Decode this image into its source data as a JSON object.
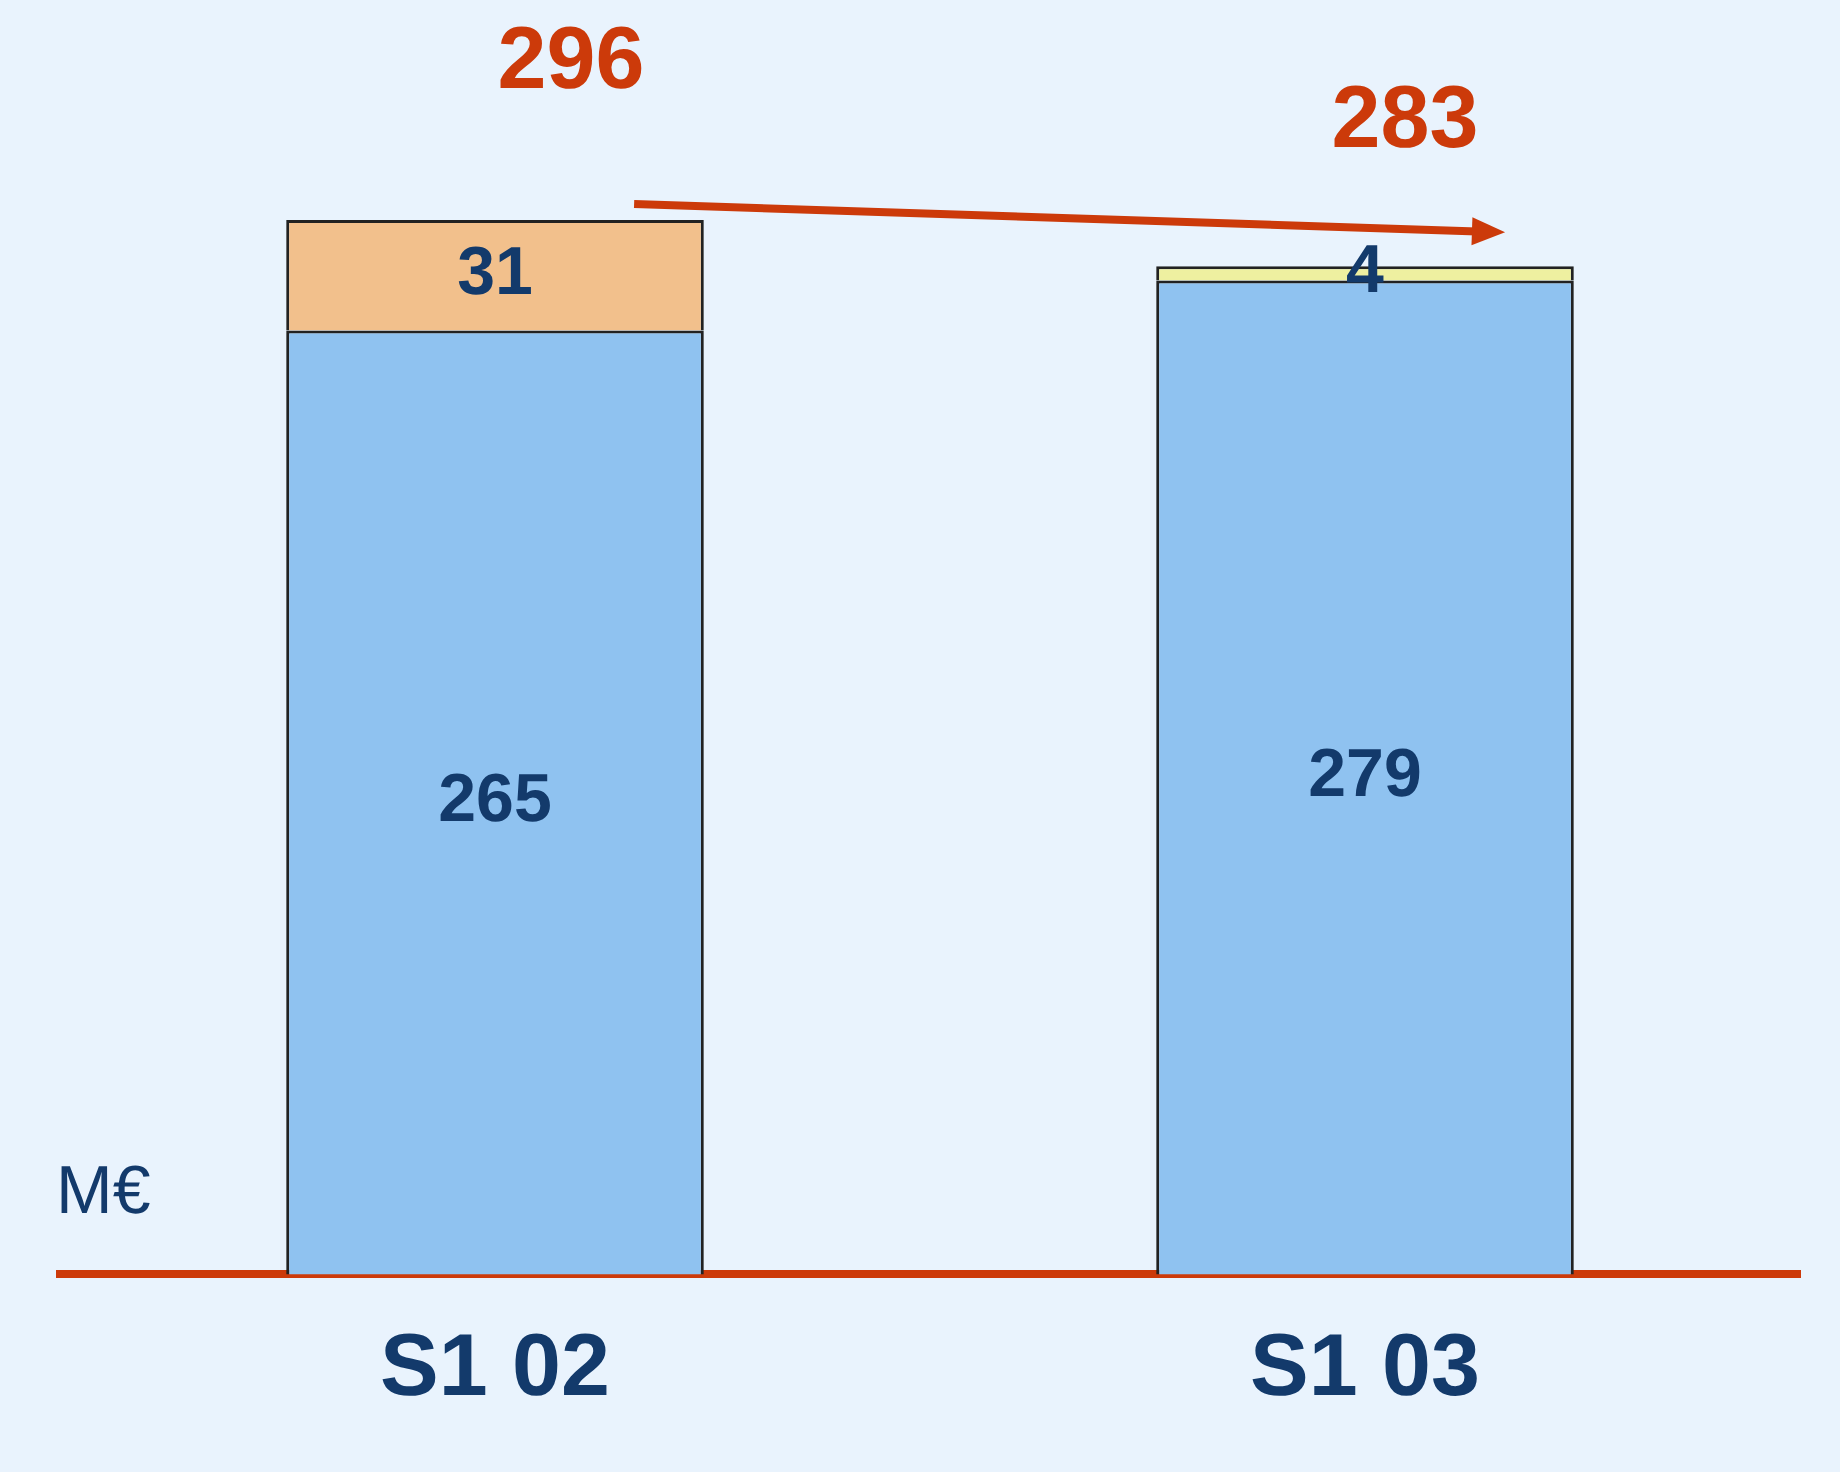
{
  "chart_data": {
    "type": "bar",
    "stacked": true,
    "ylabel": "M€",
    "categories": [
      "S1 02",
      "S1 03"
    ],
    "series": [
      {
        "color": "#8fc2f0",
        "values": [
          265,
          279
        ]
      },
      {
        "colors": [
          "#f2c08c",
          "#eef0a0"
        ],
        "values": [
          31,
          4
        ]
      }
    ],
    "data_labels": true,
    "totals": [
      "296",
      "283"
    ],
    "legend": false,
    "grid": false
  }
}
